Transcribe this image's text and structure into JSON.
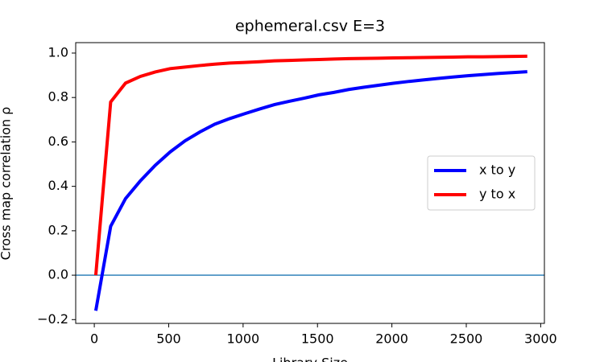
{
  "chart_data": {
    "type": "line",
    "title": "ephemeral.csv  E=3",
    "x_label": "Library Size",
    "y_label": "Cross map correlation  ρ",
    "x": [
      10,
      110,
      210,
      310,
      410,
      510,
      610,
      710,
      810,
      910,
      1010,
      1110,
      1210,
      1310,
      1410,
      1510,
      1610,
      1710,
      1810,
      1910,
      2010,
      2110,
      2210,
      2310,
      2410,
      2510,
      2610,
      2710,
      2810,
      2910
    ],
    "series": [
      {
        "name": "x to y",
        "color": "#0000ff",
        "values": [
          -0.16,
          0.22,
          0.345,
          0.425,
          0.495,
          0.555,
          0.605,
          0.645,
          0.68,
          0.705,
          0.727,
          0.748,
          0.768,
          0.783,
          0.797,
          0.812,
          0.823,
          0.836,
          0.846,
          0.855,
          0.864,
          0.872,
          0.879,
          0.886,
          0.892,
          0.898,
          0.903,
          0.908,
          0.912,
          0.916
        ]
      },
      {
        "name": "y to x",
        "color": "#ff0000",
        "values": [
          0.0,
          0.78,
          0.865,
          0.895,
          0.915,
          0.93,
          0.937,
          0.944,
          0.95,
          0.955,
          0.958,
          0.961,
          0.965,
          0.967,
          0.969,
          0.971,
          0.973,
          0.975,
          0.976,
          0.977,
          0.978,
          0.979,
          0.98,
          0.981,
          0.982,
          0.983,
          0.983,
          0.984,
          0.985,
          0.986
        ]
      }
    ],
    "hline": {
      "y": 0,
      "color": "#1f77b4"
    },
    "xlim": [
      -125,
      3025
    ],
    "ylim": [
      -0.217,
      1.047
    ],
    "xticks": [
      0,
      500,
      1000,
      1500,
      2000,
      2500,
      3000
    ],
    "yticks": [
      {
        "value": -0.2,
        "label": "−0.2"
      },
      {
        "value": 0,
        "label": "0.0"
      },
      {
        "value": 0.2,
        "label": "0.2"
      },
      {
        "value": 0.4,
        "label": "0.4"
      },
      {
        "value": 0.6,
        "label": "0.6"
      },
      {
        "value": 0.8,
        "label": "0.8"
      },
      {
        "value": 1,
        "label": "1.0"
      }
    ],
    "legend": "center right"
  }
}
